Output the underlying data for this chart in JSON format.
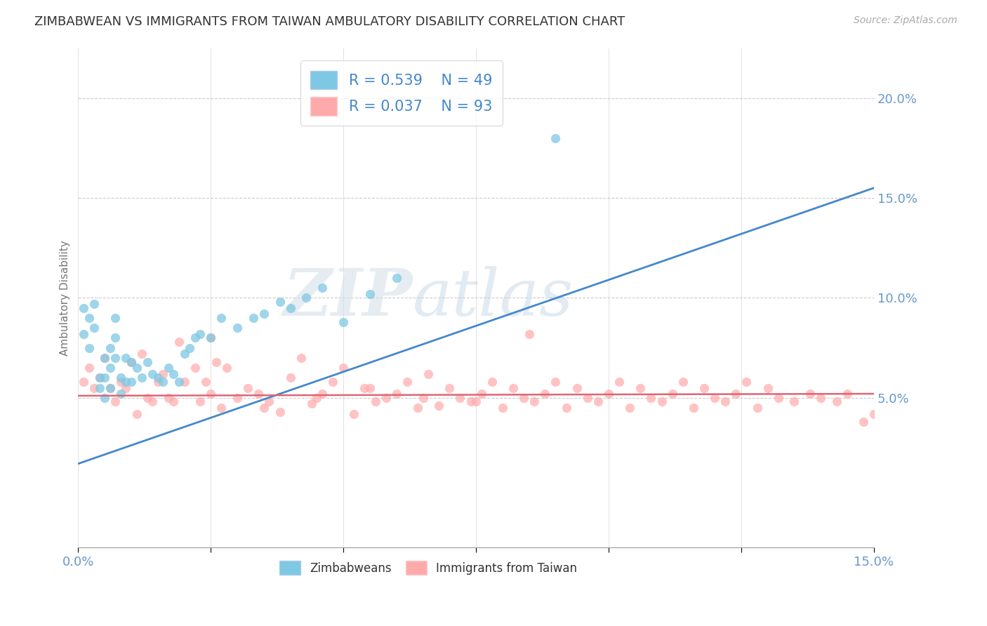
{
  "title": "ZIMBABWEAN VS IMMIGRANTS FROM TAIWAN AMBULATORY DISABILITY CORRELATION CHART",
  "source": "Source: ZipAtlas.com",
  "ylabel": "Ambulatory Disability",
  "xlim": [
    0.0,
    0.15
  ],
  "ylim": [
    -0.025,
    0.225
  ],
  "y_ticks": [
    0.05,
    0.1,
    0.15,
    0.2
  ],
  "x_ticks": [
    0.0,
    0.025,
    0.05,
    0.075,
    0.1,
    0.125,
    0.15
  ],
  "zimbabwean_R": 0.539,
  "zimbabwean_N": 49,
  "taiwan_R": 0.037,
  "taiwan_N": 93,
  "dot_color_blue": "#7ec8e3",
  "dot_color_pink": "#ffaaaa",
  "line_color_blue": "#4488cc",
  "line_color_pink": "#dd6677",
  "background_color": "#ffffff",
  "grid_color": "#cccccc",
  "watermark_zip": "ZIP",
  "watermark_atlas": "atlas",
  "title_fontsize": 13,
  "axis_label_fontsize": 11,
  "tick_label_color": "#6699cc",
  "legend_text_color": "#4488cc",
  "zim_line_x0": 0.0,
  "zim_line_y0": 0.017,
  "zim_line_x1": 0.15,
  "zim_line_y1": 0.155,
  "tai_line_x0": 0.0,
  "tai_line_y0": 0.051,
  "tai_line_x1": 0.15,
  "tai_line_y1": 0.052,
  "zimbabwean_x": [
    0.001,
    0.001,
    0.002,
    0.002,
    0.003,
    0.003,
    0.004,
    0.004,
    0.005,
    0.005,
    0.005,
    0.006,
    0.006,
    0.006,
    0.007,
    0.007,
    0.007,
    0.008,
    0.008,
    0.009,
    0.009,
    0.01,
    0.01,
    0.011,
    0.012,
    0.013,
    0.014,
    0.015,
    0.016,
    0.017,
    0.018,
    0.019,
    0.02,
    0.021,
    0.022,
    0.023,
    0.025,
    0.027,
    0.03,
    0.033,
    0.035,
    0.038,
    0.04,
    0.043,
    0.046,
    0.05,
    0.055,
    0.06,
    0.09
  ],
  "zimbabwean_y": [
    0.095,
    0.082,
    0.09,
    0.075,
    0.097,
    0.085,
    0.06,
    0.055,
    0.07,
    0.06,
    0.05,
    0.075,
    0.065,
    0.055,
    0.09,
    0.08,
    0.07,
    0.06,
    0.052,
    0.07,
    0.058,
    0.068,
    0.058,
    0.065,
    0.06,
    0.068,
    0.062,
    0.06,
    0.058,
    0.065,
    0.062,
    0.058,
    0.072,
    0.075,
    0.08,
    0.082,
    0.08,
    0.09,
    0.085,
    0.09,
    0.092,
    0.098,
    0.095,
    0.1,
    0.105,
    0.088,
    0.102,
    0.11,
    0.18
  ],
  "taiwan_x": [
    0.001,
    0.002,
    0.003,
    0.004,
    0.005,
    0.006,
    0.007,
    0.008,
    0.009,
    0.01,
    0.011,
    0.012,
    0.013,
    0.014,
    0.015,
    0.016,
    0.017,
    0.018,
    0.019,
    0.02,
    0.022,
    0.023,
    0.024,
    0.025,
    0.026,
    0.027,
    0.028,
    0.03,
    0.032,
    0.034,
    0.036,
    0.038,
    0.04,
    0.042,
    0.044,
    0.046,
    0.048,
    0.05,
    0.052,
    0.054,
    0.056,
    0.058,
    0.06,
    0.062,
    0.064,
    0.066,
    0.068,
    0.07,
    0.072,
    0.074,
    0.076,
    0.078,
    0.08,
    0.082,
    0.084,
    0.086,
    0.088,
    0.09,
    0.092,
    0.094,
    0.096,
    0.098,
    0.1,
    0.102,
    0.104,
    0.106,
    0.108,
    0.11,
    0.112,
    0.114,
    0.116,
    0.118,
    0.12,
    0.122,
    0.124,
    0.126,
    0.128,
    0.13,
    0.132,
    0.135,
    0.138,
    0.14,
    0.143,
    0.145,
    0.148,
    0.15,
    0.025,
    0.035,
    0.045,
    0.055,
    0.065,
    0.075,
    0.085
  ],
  "taiwan_y": [
    0.058,
    0.065,
    0.055,
    0.06,
    0.07,
    0.055,
    0.048,
    0.058,
    0.055,
    0.068,
    0.042,
    0.072,
    0.05,
    0.048,
    0.058,
    0.062,
    0.05,
    0.048,
    0.078,
    0.058,
    0.065,
    0.048,
    0.058,
    0.052,
    0.068,
    0.045,
    0.065,
    0.05,
    0.055,
    0.052,
    0.048,
    0.043,
    0.06,
    0.07,
    0.047,
    0.052,
    0.058,
    0.065,
    0.042,
    0.055,
    0.048,
    0.05,
    0.052,
    0.058,
    0.045,
    0.062,
    0.046,
    0.055,
    0.05,
    0.048,
    0.052,
    0.058,
    0.045,
    0.055,
    0.05,
    0.048,
    0.052,
    0.058,
    0.045,
    0.055,
    0.05,
    0.048,
    0.052,
    0.058,
    0.045,
    0.055,
    0.05,
    0.048,
    0.052,
    0.058,
    0.045,
    0.055,
    0.05,
    0.048,
    0.052,
    0.058,
    0.045,
    0.055,
    0.05,
    0.048,
    0.052,
    0.05,
    0.048,
    0.052,
    0.038,
    0.042,
    0.08,
    0.045,
    0.05,
    0.055,
    0.05,
    0.048,
    0.082
  ]
}
